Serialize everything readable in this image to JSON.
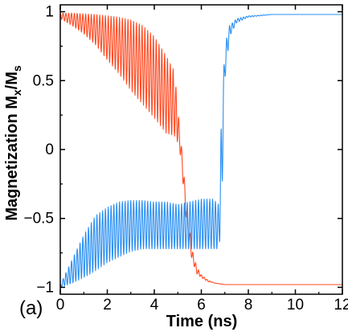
{
  "chart_data": {
    "type": "line",
    "panel_label": "(a)",
    "xlabel": "Time (ns)",
    "ylabel_main": "Magnetization M",
    "ylabel_sub_x": "x",
    "ylabel_slash": "/M",
    "ylabel_sub_s": "s",
    "xlim": [
      0,
      12
    ],
    "ylim": [
      -1.05,
      1.05
    ],
    "x_ticks": [
      0,
      2,
      4,
      6,
      8,
      10,
      12
    ],
    "x_tick_labels": [
      "0",
      "2",
      "4",
      "6",
      "8",
      "10",
      "12"
    ],
    "y_ticks": [
      -1,
      -0.5,
      0,
      0.5,
      1
    ],
    "y_tick_labels": [
      "−1",
      "−0.5",
      "0",
      "0.5",
      "1"
    ],
    "grid": false,
    "legend": false,
    "series": [
      {
        "color": "#ff4a22",
        "envelope": {
          "t": [
            0.0,
            0.5,
            1.0,
            1.5,
            2.0,
            2.5,
            3.0,
            3.5,
            4.0,
            4.5,
            4.85,
            5.0,
            5.05,
            5.2,
            5.4,
            5.6,
            5.8,
            6.0,
            6.3,
            6.6,
            7.0,
            8.0,
            12.0
          ],
          "upper": [
            0.99,
            0.99,
            0.985,
            0.98,
            0.97,
            0.96,
            0.94,
            0.9,
            0.82,
            0.68,
            0.57,
            0.32,
            0.2,
            -0.05,
            -0.45,
            -0.72,
            -0.85,
            -0.91,
            -0.95,
            -0.97,
            -0.98,
            -0.98,
            -0.98
          ],
          "lower": [
            0.95,
            0.9,
            0.84,
            0.76,
            0.65,
            0.55,
            0.43,
            0.33,
            0.23,
            0.12,
            0.1,
            0.05,
            0.05,
            -0.2,
            -0.6,
            -0.8,
            -0.9,
            -0.93,
            -0.96,
            -0.97,
            -0.98,
            -0.98,
            -0.98
          ],
          "period_ns": 0.12
        }
      },
      {
        "color": "#2a8ff2",
        "envelope": {
          "t": [
            0.0,
            0.5,
            1.0,
            1.5,
            2.0,
            2.5,
            3.0,
            3.5,
            4.0,
            4.5,
            5.0,
            5.5,
            6.0,
            6.5,
            6.75,
            6.85,
            7.0,
            7.2,
            7.5,
            8.0,
            9.0,
            12.0
          ],
          "upper": [
            -0.98,
            -0.8,
            -0.62,
            -0.48,
            -0.42,
            -0.38,
            -0.37,
            -0.37,
            -0.38,
            -0.38,
            -0.4,
            -0.38,
            -0.36,
            -0.36,
            -0.4,
            0.2,
            0.75,
            0.9,
            0.95,
            0.97,
            0.98,
            0.98
          ],
          "lower": [
            -1.0,
            -0.97,
            -0.93,
            -0.88,
            -0.82,
            -0.78,
            -0.74,
            -0.72,
            -0.72,
            -0.72,
            -0.72,
            -0.72,
            -0.72,
            -0.72,
            -0.72,
            -0.55,
            0.5,
            0.82,
            0.92,
            0.96,
            0.98,
            0.98
          ],
          "period_ns": 0.12
        }
      }
    ]
  }
}
